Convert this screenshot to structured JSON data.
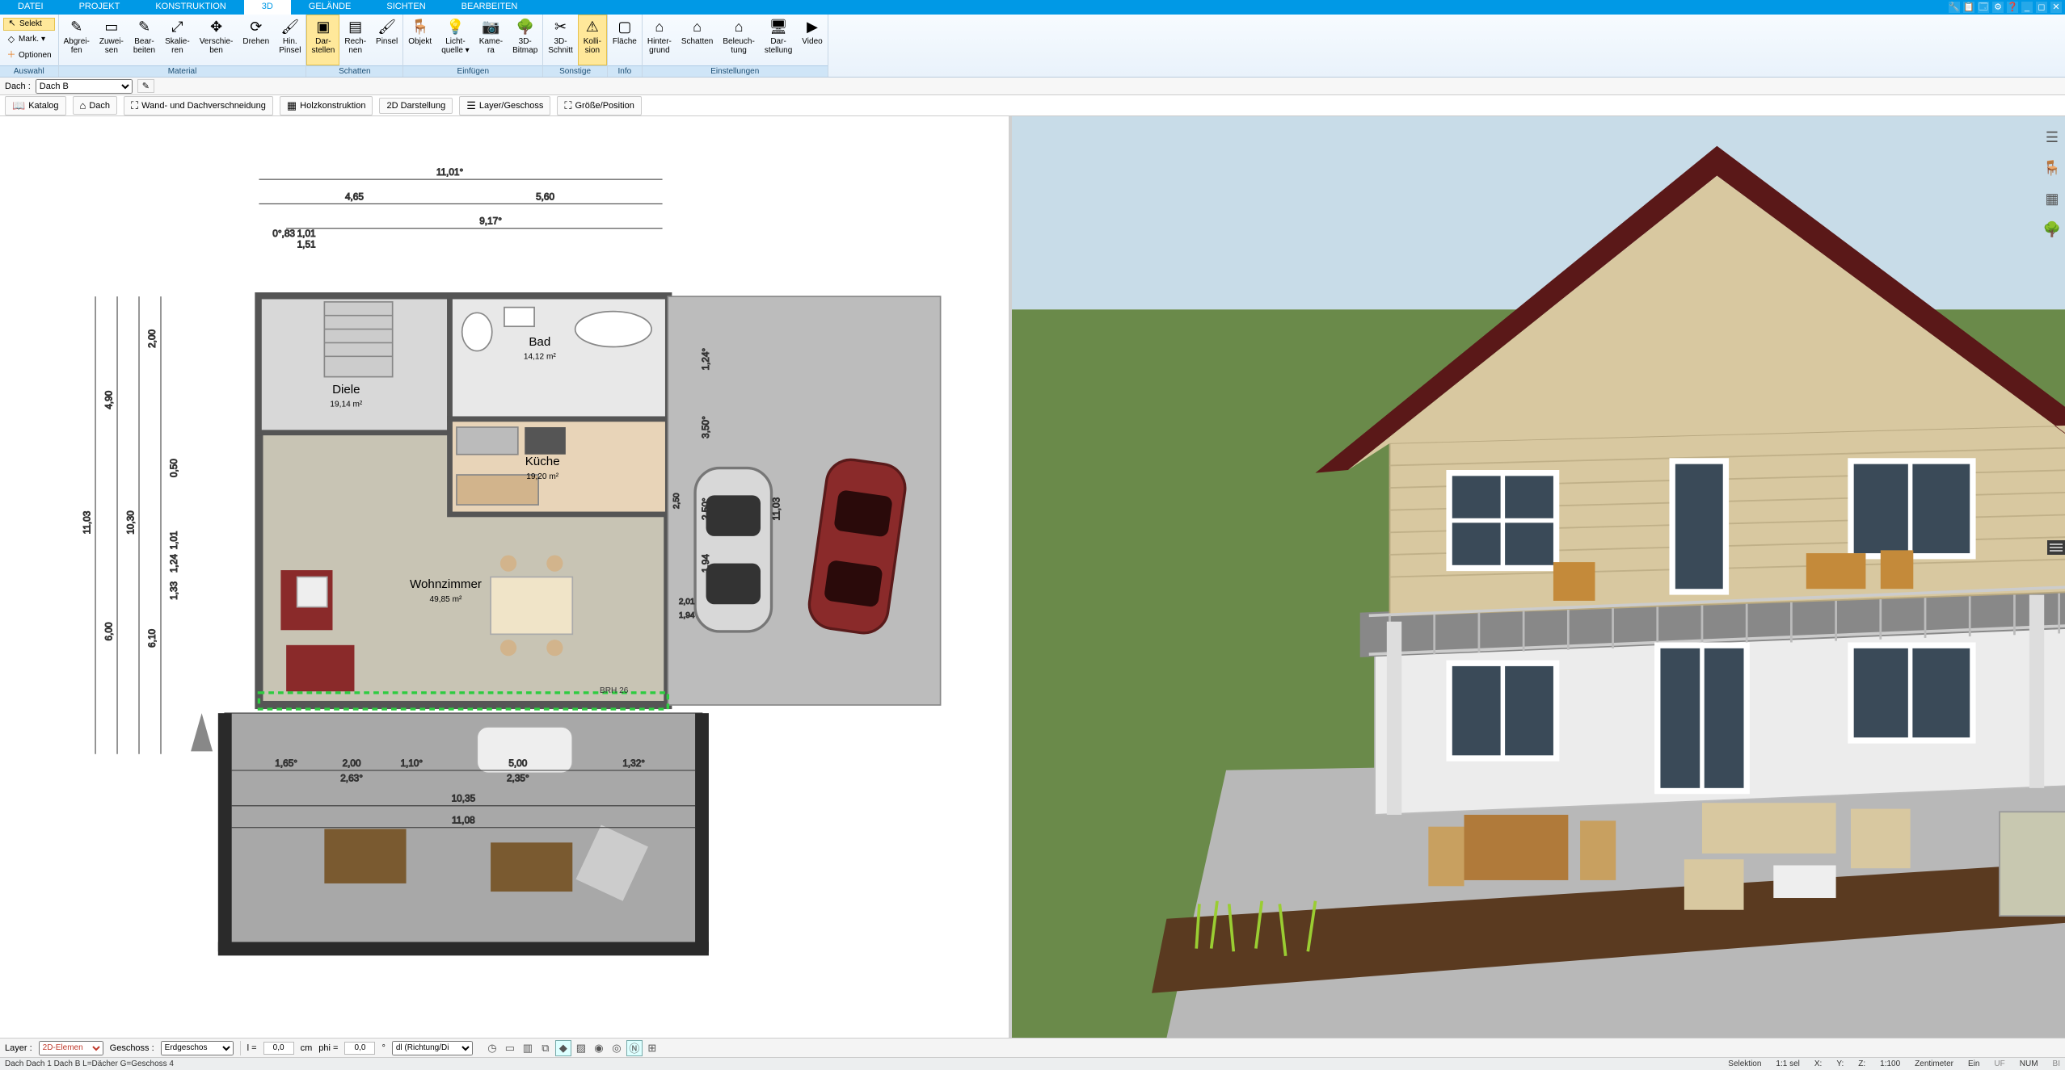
{
  "menu": {
    "tabs": [
      "DATEI",
      "PROJEKT",
      "KONSTRUKTION",
      "3D",
      "GELÄNDE",
      "SICHTEN",
      "BEARBEITEN"
    ],
    "active_index": 3
  },
  "titlebar_icons": [
    "🔧",
    "📋",
    "🗔",
    "⚙",
    "❓",
    "_",
    "◻",
    "✕"
  ],
  "ribbon": {
    "auswahl": {
      "label": "Auswahl",
      "selekt": "Selekt",
      "mark": "Mark.",
      "optionen": "Optionen"
    },
    "material": {
      "label": "Material",
      "buttons": [
        {
          "name": "abgreifen",
          "l1": "Abgrei-",
          "l2": "fen"
        },
        {
          "name": "zuweisen",
          "l1": "Zuwei-",
          "l2": "sen"
        },
        {
          "name": "bearbeiten",
          "l1": "Bear-",
          "l2": "beiten"
        },
        {
          "name": "skalieren",
          "l1": "Skalie-",
          "l2": "ren"
        },
        {
          "name": "verschieben",
          "l1": "Verschie-",
          "l2": "ben"
        },
        {
          "name": "drehen",
          "l1": "Drehen",
          "l2": ""
        },
        {
          "name": "hinpinsel",
          "l1": "Hin.",
          "l2": "Pinsel"
        }
      ]
    },
    "schatten": {
      "label": "Schatten",
      "buttons": [
        {
          "name": "darstellen",
          "l1": "Dar-",
          "l2": "stellen",
          "active": true
        },
        {
          "name": "rechnen",
          "l1": "Rech-",
          "l2": "nen"
        },
        {
          "name": "pinsel",
          "l1": "Pinsel",
          "l2": ""
        }
      ]
    },
    "einfuegen": {
      "label": "Einfügen",
      "buttons": [
        {
          "name": "objekt",
          "l1": "Objekt",
          "l2": ""
        },
        {
          "name": "lichtquelle",
          "l1": "Licht-",
          "l2": "quelle ▾"
        },
        {
          "name": "kamera",
          "l1": "Kame-",
          "l2": "ra"
        },
        {
          "name": "3dbitmap",
          "l1": "3D-",
          "l2": "Bitmap"
        }
      ]
    },
    "sonstige": {
      "label": "Sonstige",
      "buttons": [
        {
          "name": "3dschnitt",
          "l1": "3D-",
          "l2": "Schnitt"
        },
        {
          "name": "kollision",
          "l1": "Kolli-",
          "l2": "sion",
          "active": true
        }
      ]
    },
    "info": {
      "label": "Info",
      "buttons": [
        {
          "name": "flaeche",
          "l1": "Fläche",
          "l2": ""
        }
      ]
    },
    "einstellungen": {
      "label": "Einstellungen",
      "buttons": [
        {
          "name": "hintergrund",
          "l1": "Hinter-",
          "l2": "grund"
        },
        {
          "name": "schatten2",
          "l1": "Schatten",
          "l2": ""
        },
        {
          "name": "beleuchtung",
          "l1": "Beleuch-",
          "l2": "tung"
        },
        {
          "name": "darstellung",
          "l1": "Dar-",
          "l2": "stellung"
        },
        {
          "name": "video",
          "l1": "Video",
          "l2": ""
        }
      ]
    }
  },
  "subbar": {
    "dach_label": "Dach :",
    "dach_value": "Dach B",
    "pencil": "✎"
  },
  "subbar2": {
    "buttons": [
      {
        "name": "katalog",
        "icon": "📖",
        "label": "Katalog"
      },
      {
        "name": "dach",
        "icon": "⌂",
        "label": "Dach"
      },
      {
        "name": "wanddach",
        "icon": "⛶",
        "label": "Wand- und Dachverschneidung"
      },
      {
        "name": "holz",
        "icon": "▦",
        "label": "Holzkonstruktion"
      },
      {
        "name": "2ddarst",
        "icon": "",
        "label": "2D Darstellung"
      },
      {
        "name": "layergeschoss",
        "icon": "☰",
        "label": "Layer/Geschoss"
      },
      {
        "name": "groesse",
        "icon": "⛶",
        "label": "Größe/Position"
      }
    ]
  },
  "plan": {
    "dims": {
      "top_total": "11,01°",
      "top_left": "4,65",
      "top_right": "5,60",
      "top_sub": "9,17°",
      "left_101": "1,01",
      "left_151": "1,51",
      "left_083": "0°,83",
      "left_200": "2,00",
      "left_490": "4,90",
      "left_050": "0,50",
      "left_1030": "10,30",
      "left_1103": "11,03",
      "left_610": "6,10",
      "left_600": "6,00",
      "left_101b": "1,01",
      "left_124": "1,24",
      "left_133": "1,33",
      "right_124": "1,24°",
      "right_350": "3,50°",
      "right_250": "2,50°",
      "right_194": "1,94",
      "right_1103": "11,03",
      "right_250b": "2,50",
      "right_201": "2,01",
      "right_194b": "1,94",
      "bot_165": "1,65°",
      "bot_200": "2,00",
      "bot_263": "2,63°",
      "bot_110": "1,10°",
      "bot_500": "5,00",
      "bot_235": "2,35°",
      "bot_132": "1,32°",
      "bot_1035": "10,35",
      "bot_1108": "11,08",
      "bot_brh": "BRH 26"
    },
    "rooms": {
      "bad": {
        "name": "Bad",
        "area": "14,12 m²"
      },
      "diele": {
        "name": "Diele",
        "area": "19,14 m²"
      },
      "kueche": {
        "name": "Küche",
        "area": "19,20 m²"
      },
      "wohn": {
        "name": "Wohnzimmer",
        "area": "49,85 m²"
      }
    },
    "colors": {
      "wall": "#6b6b6b",
      "tile": "#d8d8d8",
      "kitchen": "#e8d4b8",
      "living": "#c8c4b4",
      "outdoor": "#b8b8b8",
      "terrace": "#a8a8a8",
      "car1": "#d0d0d0",
      "car2": "#8a2a2a",
      "sel": "#2ecc40"
    }
  },
  "view3d": {
    "sky": "#c8dce8",
    "grass": "#6a8a4a",
    "roof": "#5a1818",
    "siding": "#d8c8a0",
    "stucco": "#ececec",
    "glass": "#3a4a58",
    "deck": "#888888",
    "patio": "#b8b8b8"
  },
  "right_tools": [
    "☰",
    "🪑",
    "▦",
    "🌳"
  ],
  "bottom": {
    "layer_label": "Layer :",
    "layer_value": "2D-Elemen",
    "geschoss_label": "Geschoss :",
    "geschoss_value": "Erdgeschos",
    "l_label": "l =",
    "l_value": "0,0",
    "l_unit": "cm",
    "phi_label": "phi =",
    "phi_value": "0,0",
    "phi_unit": "°",
    "dl_value": "dl (Richtung/Di",
    "icons": [
      "◷",
      "▭",
      "▥",
      "⧉",
      "◆",
      "▨",
      "◉",
      "◎",
      "Ⓝ",
      "⊞"
    ]
  },
  "status": {
    "left": "Dach Dach 1 Dach B L=Dächer G=Geschoss 4",
    "selektion": "Selektion",
    "sel": "1:1 sel",
    "x": "X:",
    "y": "Y:",
    "z": "Z:",
    "scale": "1:100",
    "unit": "Zentimeter",
    "ein": "Ein",
    "uf": "UF",
    "num": "NUM",
    "bi": "BI"
  }
}
